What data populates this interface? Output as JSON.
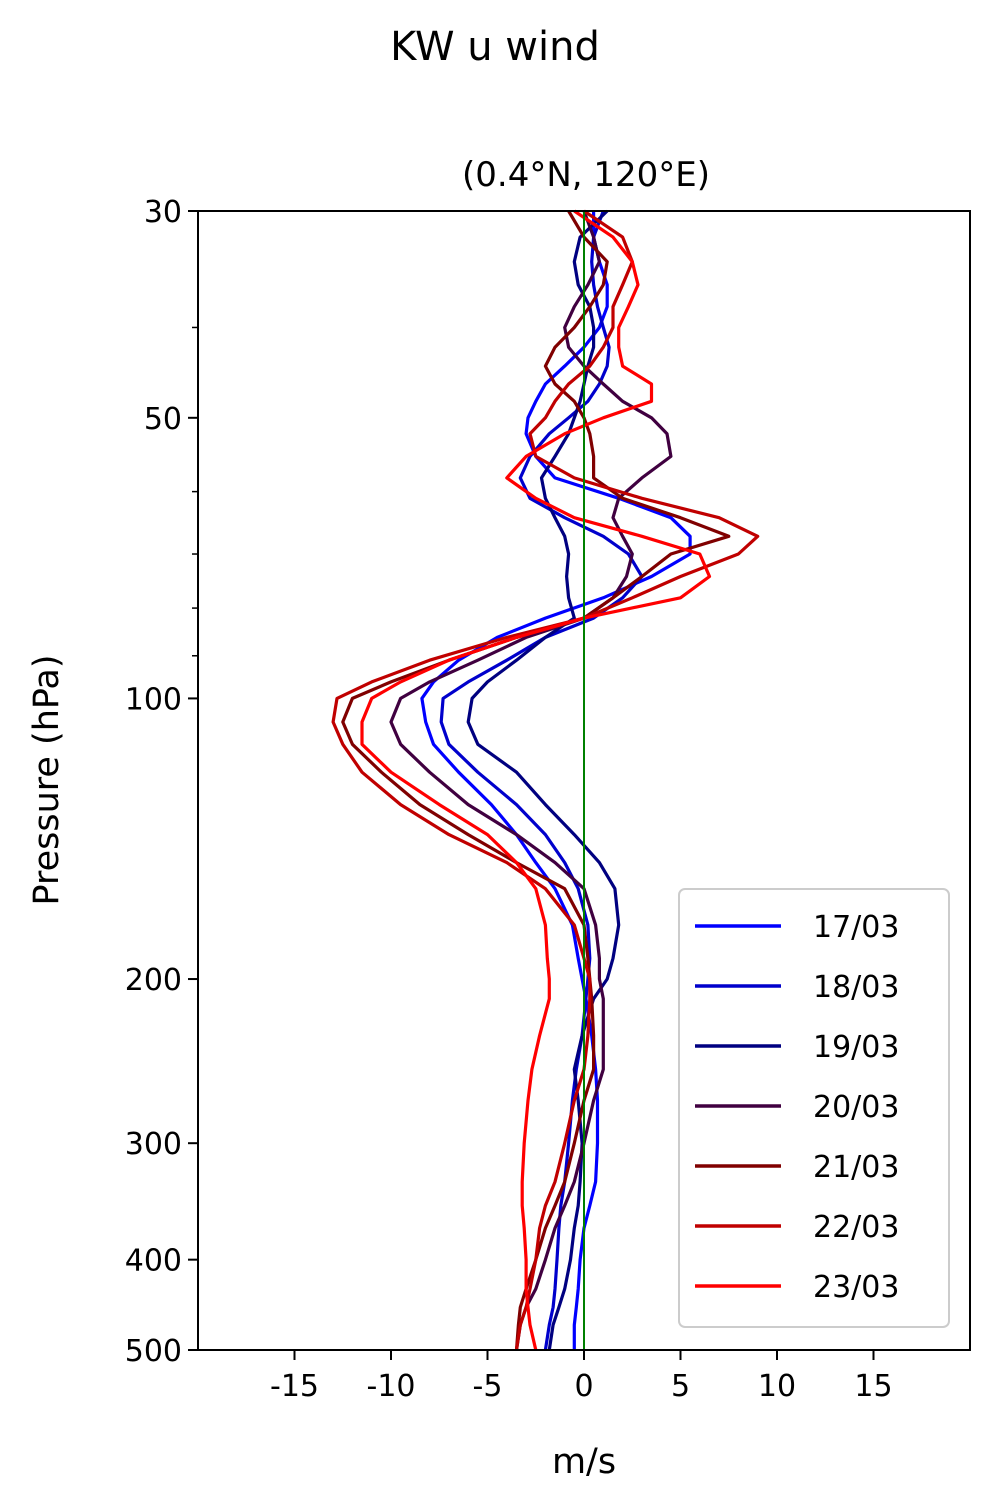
{
  "suptitle": "KW u wind",
  "chart_data": {
    "type": "line",
    "title": "(0.4°N, 120°E)",
    "xlabel": "m/s",
    "ylabel": "Pressure (hPa)",
    "xlim": [
      -20,
      20
    ],
    "ylim": [
      500,
      30
    ],
    "y_scale": "log",
    "xticks": [
      -15,
      -10,
      -5,
      0,
      5,
      10,
      15
    ],
    "xtick_labels": [
      "-15",
      "-10",
      "-5",
      "0",
      "5",
      "10",
      "15"
    ],
    "yticks": [
      30,
      50,
      100,
      200,
      300,
      400,
      500
    ],
    "ytick_labels": [
      "30",
      "50",
      "100",
      "200",
      "300",
      "400",
      "500"
    ],
    "y_minor_ticks": [
      40,
      60,
      70,
      80,
      90
    ],
    "reference_line": {
      "x": 0,
      "color": "#008000"
    },
    "legend_position": "lower-right",
    "pressure_levels": [
      500,
      470,
      450,
      430,
      400,
      370,
      350,
      330,
      300,
      270,
      250,
      230,
      210,
      200,
      190,
      175,
      160,
      150,
      140,
      130,
      120,
      112,
      106,
      100,
      96,
      91,
      86,
      82,
      78,
      74,
      70,
      67,
      64,
      61,
      58,
      55,
      52,
      50,
      48,
      46,
      44,
      42,
      40,
      38,
      36,
      34,
      32,
      30
    ],
    "series": [
      {
        "name": "17/03",
        "color": "#0000ff",
        "values": [
          -0.5,
          -0.5,
          -0.4,
          -0.3,
          -0.2,
          0.0,
          0.3,
          0.6,
          0.7,
          0.7,
          0.6,
          0.4,
          0.1,
          -0.1,
          -0.3,
          -0.6,
          -1.5,
          -2.5,
          -3.5,
          -4.8,
          -6.5,
          -7.8,
          -8.2,
          -8.4,
          -7.8,
          -6.5,
          -4.5,
          -2.0,
          1.0,
          3.5,
          5.5,
          5.5,
          4.5,
          1.8,
          -1.5,
          -2.5,
          -3.0,
          -2.9,
          -2.5,
          -2.0,
          -1.0,
          0.0,
          0.8,
          1.2,
          1.2,
          0.8,
          0.5,
          0.5
        ]
      },
      {
        "name": "18/03",
        "color": "#0000cc",
        "values": [
          -2.0,
          -1.8,
          -1.6,
          -1.5,
          -1.4,
          -1.3,
          -1.2,
          -1.0,
          -0.8,
          -0.6,
          -0.4,
          -0.1,
          0.1,
          0.2,
          0.3,
          0.2,
          -0.3,
          -1.0,
          -2.0,
          -3.5,
          -5.5,
          -7.0,
          -7.4,
          -7.3,
          -6.0,
          -4.0,
          -2.0,
          0.5,
          2.0,
          3.0,
          2.3,
          1.0,
          -1.0,
          -2.8,
          -3.3,
          -2.8,
          -1.8,
          -0.8,
          0.2,
          0.8,
          1.2,
          1.3,
          1.0,
          0.7,
          0.5,
          0.4,
          0.5,
          1.0
        ]
      },
      {
        "name": "19/03",
        "color": "#000080",
        "values": [
          -1.8,
          -1.6,
          -1.3,
          -1.0,
          -0.7,
          -0.5,
          -0.3,
          -0.2,
          -0.1,
          -0.3,
          -0.5,
          -0.1,
          0.5,
          1.2,
          1.5,
          1.8,
          1.6,
          0.8,
          -0.5,
          -2.0,
          -3.5,
          -5.5,
          -6.0,
          -5.8,
          -5.0,
          -3.5,
          -2.0,
          -0.5,
          -0.8,
          -0.9,
          -0.8,
          -1.0,
          -1.5,
          -2.0,
          -2.2,
          -1.5,
          -0.8,
          -0.5,
          -0.2,
          0.0,
          0.2,
          0.5,
          0.5,
          0.3,
          -0.3,
          -0.5,
          -0.2,
          1.2
        ]
      },
      {
        "name": "20/03",
        "color": "#400040",
        "values": [
          -3.5,
          -3.3,
          -3.0,
          -2.5,
          -2.0,
          -1.5,
          -1.0,
          -0.5,
          0.0,
          0.5,
          1.0,
          1.0,
          1.0,
          0.8,
          0.8,
          0.6,
          0.0,
          -1.5,
          -3.5,
          -6.0,
          -8.0,
          -9.5,
          -10.0,
          -9.5,
          -8.0,
          -5.5,
          -3.0,
          0.0,
          1.5,
          2.2,
          2.5,
          2.0,
          1.5,
          1.8,
          3.0,
          4.5,
          4.3,
          3.5,
          2.0,
          1.0,
          0.0,
          -0.8,
          -1.0,
          -0.5,
          0.2,
          0.8,
          0.5,
          0.0
        ]
      },
      {
        "name": "21/03",
        "color": "#800000",
        "values": [
          -3.5,
          -3.4,
          -3.3,
          -3.0,
          -2.5,
          -2.0,
          -1.5,
          -1.0,
          -0.5,
          0.0,
          0.5,
          0.5,
          0.4,
          0.3,
          0.2,
          0.0,
          -1.0,
          -3.5,
          -6.0,
          -8.5,
          -10.5,
          -12.0,
          -12.5,
          -12.0,
          -10.0,
          -7.0,
          -3.5,
          0.0,
          1.5,
          3.0,
          4.5,
          7.5,
          5.0,
          2.0,
          0.5,
          0.5,
          0.3,
          0.0,
          -0.5,
          -1.5,
          -2.0,
          -1.5,
          -0.5,
          0.3,
          1.0,
          1.2,
          0.0,
          -0.8
        ]
      },
      {
        "name": "22/03",
        "color": "#c00000",
        "values": [
          -3.5,
          -3.3,
          -3.0,
          -2.8,
          -2.5,
          -2.3,
          -2.0,
          -1.5,
          -1.0,
          -0.5,
          0.0,
          0.2,
          0.3,
          0.3,
          0.0,
          -0.5,
          -2.0,
          -4.0,
          -7.0,
          -9.5,
          -11.5,
          -12.5,
          -13.0,
          -12.8,
          -11.0,
          -8.0,
          -4.0,
          0.0,
          2.5,
          5.0,
          8.0,
          9.0,
          7.0,
          3.0,
          -0.5,
          -2.5,
          -2.8,
          -2.0,
          -1.5,
          -0.8,
          0.3,
          1.0,
          1.5,
          1.5,
          2.0,
          2.5,
          2.0,
          0.0
        ]
      },
      {
        "name": "23/03",
        "color": "#ff0000",
        "values": [
          -2.5,
          -2.8,
          -2.9,
          -3.0,
          -3.0,
          -3.1,
          -3.2,
          -3.2,
          -3.1,
          -2.9,
          -2.7,
          -2.3,
          -1.8,
          -1.8,
          -1.9,
          -2.0,
          -2.5,
          -3.5,
          -5.0,
          -7.5,
          -10.0,
          -11.5,
          -11.5,
          -11.0,
          -9.5,
          -7.0,
          -3.5,
          0.0,
          5.0,
          6.5,
          6.0,
          3.0,
          -0.5,
          -2.5,
          -4.0,
          -3.0,
          -1.0,
          1.0,
          3.5,
          3.5,
          2.0,
          1.8,
          1.8,
          2.3,
          2.8,
          2.5,
          1.5,
          -0.5
        ]
      }
    ]
  }
}
